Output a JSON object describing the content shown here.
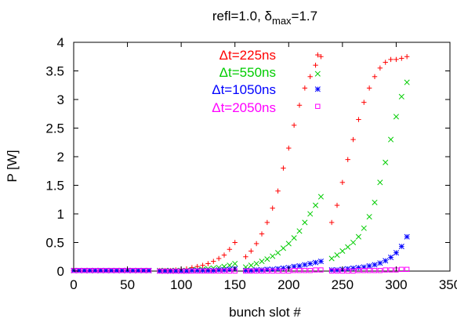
{
  "chart_data": {
    "type": "scatter",
    "title": {
      "prefix": "refl=1.0, ",
      "greek": "δ",
      "sub": "max",
      "suffix": "=1.7"
    },
    "xlabel": "bunch slot #",
    "ylabel": "P [W]",
    "xlim": [
      0,
      350
    ],
    "ylim": [
      0,
      4
    ],
    "xticks": [
      0,
      50,
      100,
      150,
      200,
      250,
      300,
      350
    ],
    "yticks": [
      0,
      0.5,
      1,
      1.5,
      2,
      2.5,
      3,
      3.5,
      4
    ],
    "grid": false,
    "legend_position": "top-center",
    "series": [
      {
        "name": "Δt=225ns",
        "name_greek": "Δ",
        "name_rest": "t=225ns",
        "color": "#ff0000",
        "marker": "plus",
        "x": [
          0,
          5,
          10,
          15,
          20,
          25,
          30,
          35,
          40,
          45,
          50,
          55,
          60,
          65,
          70,
          80,
          85,
          90,
          95,
          100,
          105,
          110,
          115,
          120,
          125,
          130,
          135,
          140,
          145,
          150,
          160,
          165,
          170,
          175,
          180,
          185,
          190,
          195,
          200,
          205,
          210,
          215,
          220,
          225,
          230,
          240,
          245,
          250,
          255,
          260,
          265,
          270,
          275,
          280,
          285,
          290,
          295,
          300,
          305,
          310
        ],
        "y": [
          0.01,
          0.01,
          0.01,
          0.01,
          0.01,
          0.01,
          0.01,
          0.01,
          0.01,
          0.01,
          0.01,
          0.01,
          0.01,
          0.01,
          0.01,
          0.01,
          0.01,
          0.01,
          0.02,
          0.03,
          0.04,
          0.06,
          0.08,
          0.1,
          0.13,
          0.17,
          0.22,
          0.28,
          0.38,
          0.5,
          0.25,
          0.35,
          0.48,
          0.65,
          0.85,
          1.1,
          1.4,
          1.8,
          2.15,
          2.55,
          2.9,
          3.2,
          3.4,
          3.6,
          3.75,
          0.85,
          1.15,
          1.55,
          1.95,
          2.3,
          2.65,
          2.95,
          3.2,
          3.4,
          3.55,
          3.65,
          3.7,
          3.7,
          3.72,
          3.75
        ],
        "end_label": {
          "x": 227,
          "y": 3.78
        }
      },
      {
        "name": "Δt=550ns",
        "name_greek": "Δ",
        "name_rest": "t=550ns",
        "color": "#00cc00",
        "marker": "x",
        "x": [
          0,
          5,
          10,
          15,
          20,
          25,
          30,
          35,
          40,
          45,
          50,
          55,
          60,
          65,
          70,
          80,
          85,
          90,
          95,
          100,
          105,
          110,
          115,
          120,
          125,
          130,
          135,
          140,
          145,
          150,
          160,
          165,
          170,
          175,
          180,
          185,
          190,
          195,
          200,
          205,
          210,
          215,
          220,
          225,
          230,
          240,
          245,
          250,
          255,
          260,
          265,
          270,
          275,
          280,
          285,
          290,
          295,
          300,
          305,
          310
        ],
        "y": [
          0.01,
          0.01,
          0.01,
          0.01,
          0.01,
          0.01,
          0.01,
          0.01,
          0.01,
          0.01,
          0.01,
          0.01,
          0.01,
          0.01,
          0.01,
          0.01,
          0.01,
          0.01,
          0.01,
          0.01,
          0.01,
          0.02,
          0.02,
          0.03,
          0.04,
          0.05,
          0.06,
          0.08,
          0.1,
          0.13,
          0.07,
          0.1,
          0.13,
          0.17,
          0.21,
          0.26,
          0.32,
          0.4,
          0.48,
          0.58,
          0.7,
          0.85,
          1.0,
          1.15,
          1.3,
          0.22,
          0.28,
          0.35,
          0.42,
          0.5,
          0.6,
          0.75,
          0.95,
          1.2,
          1.55,
          1.9,
          2.3,
          2.7,
          3.05,
          3.3
        ],
        "end_label": {
          "x": 227,
          "y": 3.45
        }
      },
      {
        "name": "Δt=1050ns",
        "name_greek": "Δ",
        "name_rest": "t=1050ns",
        "color": "#0000ff",
        "marker": "star",
        "x": [
          0,
          5,
          10,
          15,
          20,
          25,
          30,
          35,
          40,
          45,
          50,
          55,
          60,
          65,
          70,
          80,
          85,
          90,
          95,
          100,
          105,
          110,
          115,
          120,
          125,
          130,
          135,
          140,
          145,
          150,
          160,
          165,
          170,
          175,
          180,
          185,
          190,
          195,
          200,
          205,
          210,
          215,
          220,
          225,
          230,
          240,
          245,
          250,
          255,
          260,
          265,
          270,
          275,
          280,
          285,
          290,
          295,
          300,
          305,
          310
        ],
        "y": [
          0.01,
          0.01,
          0.01,
          0.01,
          0.01,
          0.01,
          0.01,
          0.01,
          0.01,
          0.01,
          0.01,
          0.01,
          0.01,
          0.01,
          0.01,
          0.0,
          0.0,
          0.0,
          0.0,
          0.0,
          0.0,
          0.01,
          0.01,
          0.01,
          0.01,
          0.01,
          0.02,
          0.02,
          0.03,
          0.04,
          0.01,
          0.01,
          0.02,
          0.02,
          0.03,
          0.03,
          0.04,
          0.05,
          0.06,
          0.08,
          0.09,
          0.11,
          0.13,
          0.15,
          0.17,
          0.02,
          0.02,
          0.03,
          0.04,
          0.05,
          0.06,
          0.07,
          0.09,
          0.11,
          0.14,
          0.18,
          0.24,
          0.32,
          0.43,
          0.6
        ],
        "end_label": {
          "x": 227,
          "y": 3.18
        }
      },
      {
        "name": "Δt=2050ns",
        "name_greek": "Δ",
        "name_rest": "t=2050ns",
        "color": "#ff00ff",
        "marker": "square",
        "x": [
          0,
          5,
          10,
          15,
          20,
          25,
          30,
          35,
          40,
          45,
          50,
          55,
          60,
          65,
          70,
          80,
          85,
          90,
          95,
          100,
          105,
          110,
          115,
          120,
          125,
          130,
          135,
          140,
          145,
          150,
          160,
          165,
          170,
          175,
          180,
          185,
          190,
          195,
          200,
          205,
          210,
          215,
          220,
          225,
          230,
          240,
          245,
          250,
          255,
          260,
          265,
          270,
          275,
          280,
          285,
          290,
          295,
          300,
          305,
          310
        ],
        "y": [
          0.01,
          0.01,
          0.01,
          0.01,
          0.01,
          0.01,
          0.01,
          0.01,
          0.01,
          0.01,
          0.01,
          0.01,
          0.01,
          0.01,
          0.01,
          0.0,
          0.0,
          0.0,
          0.0,
          0.0,
          0.0,
          0.0,
          0.0,
          0.0,
          0.0,
          0.0,
          0.0,
          0.0,
          0.0,
          0.0,
          0.0,
          0.0,
          0.0,
          0.0,
          0.0,
          0.0,
          0.0,
          0.0,
          0.0,
          0.01,
          0.01,
          0.01,
          0.01,
          0.02,
          0.02,
          0.0,
          0.0,
          0.0,
          0.0,
          0.0,
          0.01,
          0.01,
          0.01,
          0.01,
          0.01,
          0.02,
          0.02,
          0.02,
          0.03,
          0.03
        ],
        "end_label": {
          "x": 227,
          "y": 2.88
        }
      }
    ]
  }
}
